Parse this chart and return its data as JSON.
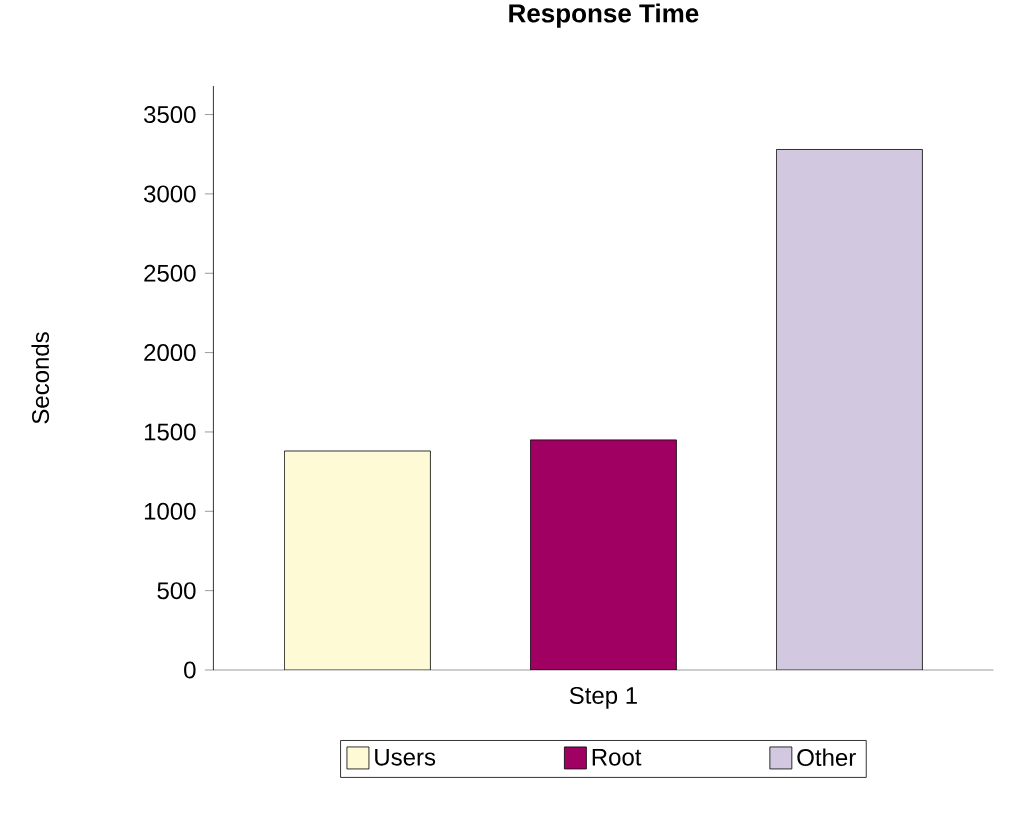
{
  "chart_data": {
    "type": "bar",
    "title": "Response Time",
    "ylabel": "Seconds",
    "categories": [
      "Step 1"
    ],
    "series": [
      {
        "name": "Users",
        "color": "#fffad6",
        "values": [
          1380
        ]
      },
      {
        "name": "Root",
        "color": "#a10063",
        "values": [
          1450
        ]
      },
      {
        "name": "Other",
        "color": "#d2c8e0",
        "values": [
          3280
        ]
      }
    ],
    "ylim": [
      0,
      3680
    ],
    "yticks": [
      0,
      500,
      1000,
      1500,
      2000,
      2500,
      3000,
      3500
    ],
    "legend": "bottom"
  }
}
